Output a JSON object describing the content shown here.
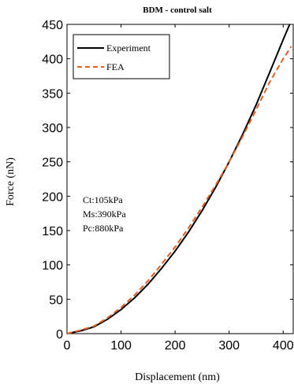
{
  "chart_data": {
    "type": "line",
    "title": "BDM - control salt",
    "xlabel": "Displacement (nm)",
    "ylabel": "Force (nN)",
    "xlim": [
      0,
      420
    ],
    "ylim": [
      0,
      450
    ],
    "xticks": [
      0,
      100,
      200,
      300,
      400
    ],
    "yticks": [
      0,
      50,
      100,
      150,
      200,
      250,
      300,
      350,
      400,
      450
    ],
    "grid": false,
    "legend_position": "top-left",
    "series": [
      {
        "name": "Experiment",
        "color": "#000000",
        "dash": "solid",
        "x": [
          0,
          25,
          50,
          75,
          100,
          125,
          150,
          175,
          200,
          225,
          250,
          275,
          300,
          325,
          350,
          375,
          400,
          412
        ],
        "y": [
          0,
          4,
          10,
          21,
          35,
          52,
          72,
          95,
          120,
          148,
          179,
          213,
          250,
          290,
          333,
          380,
          428,
          450
        ]
      },
      {
        "name": "FEA",
        "color": "#e06020",
        "dash": "dashed",
        "x": [
          0,
          25,
          50,
          75,
          100,
          125,
          150,
          175,
          200,
          225,
          250,
          275,
          300,
          325,
          350,
          375,
          400,
          415
        ],
        "y": [
          0,
          5,
          11,
          23,
          38,
          56,
          77,
          101,
          126,
          154,
          184,
          216,
          250,
          287,
          326,
          366,
          400,
          418
        ]
      }
    ],
    "annotations": [
      "Ct:105kPa",
      "Ms:390kPa",
      "Pc:880kPa"
    ]
  }
}
